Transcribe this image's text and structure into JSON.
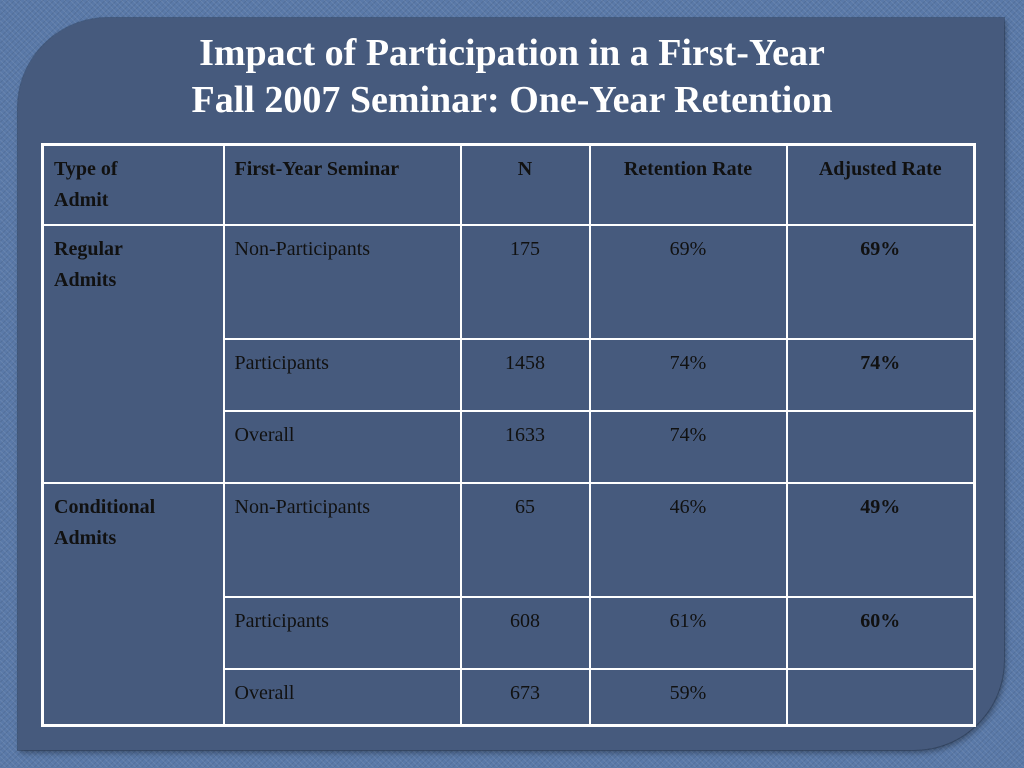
{
  "slide": {
    "title_line1": "Impact of Participation in a First-Year",
    "title_line2": "Fall 2007 Seminar: One-Year Retention"
  },
  "colors": {
    "background": "#5a79a8",
    "panel": "#465a7d",
    "title_text": "#ffffff",
    "table_border": "#ffffff",
    "cell_text": "#111111"
  },
  "table": {
    "headers": {
      "type_of_admit_line1": "Type of",
      "type_of_admit_line2": "Admit",
      "first_year_seminar": "First-Year Seminar",
      "n": "N",
      "retention_rate": "Retention Rate",
      "adjusted_rate": "Adjusted Rate"
    },
    "groups": [
      {
        "label_line1": "Regular",
        "label_line2": "Admits",
        "rows": [
          {
            "seminar": "Non-Participants",
            "n": "175",
            "retention": "69%",
            "adjusted": "69%"
          },
          {
            "seminar": "Participants",
            "n": "1458",
            "retention": "74%",
            "adjusted": "74%"
          },
          {
            "seminar": "Overall",
            "n": "1633",
            "retention": "74%",
            "adjusted": ""
          }
        ]
      },
      {
        "label_line1": "Conditional",
        "label_line2": "Admits",
        "rows": [
          {
            "seminar": "Non-Participants",
            "n": "65",
            "retention": "46%",
            "adjusted": "49%"
          },
          {
            "seminar": "Participants",
            "n": "608",
            "retention": "61%",
            "adjusted": "60%"
          },
          {
            "seminar": "Overall",
            "n": "673",
            "retention": "59%",
            "adjusted": ""
          }
        ]
      }
    ]
  }
}
